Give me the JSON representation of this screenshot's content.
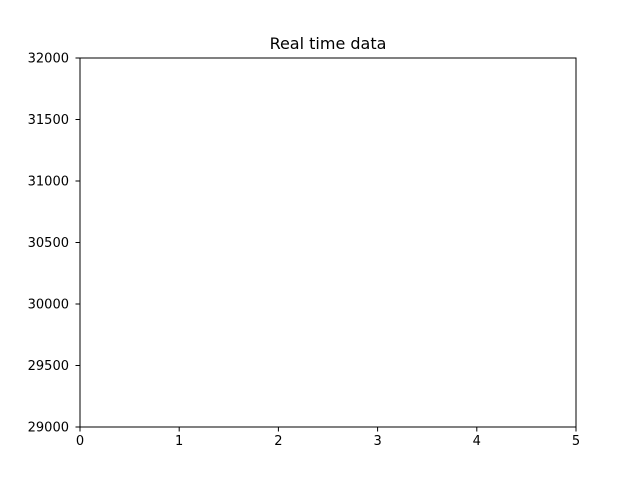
{
  "chart_data": {
    "type": "line",
    "title": "Real time data",
    "xlabel": "",
    "ylabel": "",
    "xlim": [
      0,
      5
    ],
    "ylim": [
      29000,
      32000
    ],
    "x_ticks": [
      0,
      1,
      2,
      3,
      4,
      5
    ],
    "x_tick_labels": [
      "0",
      "1",
      "2",
      "3",
      "4",
      "5"
    ],
    "y_ticks": [
      29000,
      29500,
      30000,
      30500,
      31000,
      31500,
      32000
    ],
    "y_tick_labels": [
      "29000",
      "29500",
      "30000",
      "30500",
      "31000",
      "31500",
      "32000"
    ],
    "series": [],
    "grid": false,
    "legend": "none"
  }
}
